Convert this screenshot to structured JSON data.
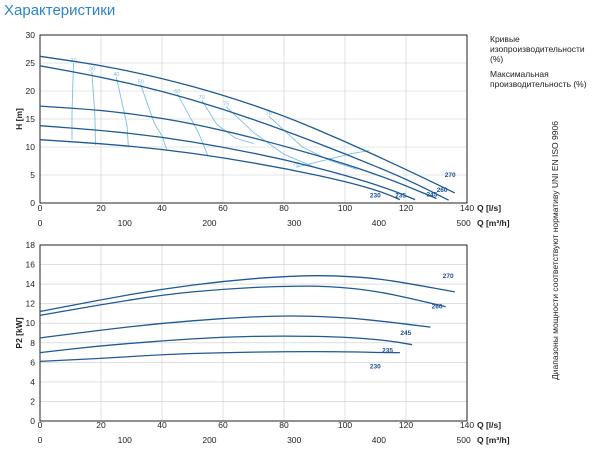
{
  "page": {
    "title": "Характеристики",
    "legend": {
      "curves_label": "Кривые изопроизводительности (%)",
      "max_label": "Максимальная производительность (%)"
    },
    "norm_text": "Диапазоны мощности соответствуют нормативу UNI EN ISO 9906"
  },
  "colors": {
    "curve": "#1d5a96",
    "iso": "#7cc0e4",
    "grid": "#cccccc",
    "frame": "#222222",
    "title": "#2c86c6"
  },
  "chart_data": [
    {
      "type": "line",
      "title": "",
      "ylabel": "H [m]",
      "xlabel": "Q [l/s]",
      "x2label": "Q [m³/h]",
      "xlim": [
        0,
        140
      ],
      "ylim": [
        0,
        30
      ],
      "xticks": [
        0,
        20,
        40,
        60,
        80,
        100,
        120,
        140
      ],
      "yticks": [
        0,
        5,
        10,
        15,
        20,
        25,
        30
      ],
      "x2ticks": [
        0,
        100,
        200,
        300,
        400,
        500
      ],
      "series": [
        {
          "name": "270",
          "points": [
            [
              0,
              26.2
            ],
            [
              20,
              24.6
            ],
            [
              40,
              22.3
            ],
            [
              60,
              19.3
            ],
            [
              80,
              15.6
            ],
            [
              100,
              11.0
            ],
            [
              120,
              6.0
            ],
            [
              136,
              1.8
            ]
          ]
        },
        {
          "name": "260",
          "points": [
            [
              0,
              24.5
            ],
            [
              20,
              22.5
            ],
            [
              40,
              20.0
            ],
            [
              60,
              16.8
            ],
            [
              80,
              13.0
            ],
            [
              100,
              8.8
            ],
            [
              120,
              4.3
            ],
            [
              134,
              0.5
            ]
          ]
        },
        {
          "name": "245",
          "points": [
            [
              0,
              17.3
            ],
            [
              20,
              16.6
            ],
            [
              40,
              15.2
            ],
            [
              60,
              13.0
            ],
            [
              80,
              10.2
            ],
            [
              100,
              7.0
            ],
            [
              116,
              4.0
            ],
            [
              130,
              0.8
            ]
          ]
        },
        {
          "name": "235",
          "points": [
            [
              0,
              13.8
            ],
            [
              20,
              13.0
            ],
            [
              40,
              11.8
            ],
            [
              60,
              10.0
            ],
            [
              80,
              7.8
            ],
            [
              100,
              5.0
            ],
            [
              115,
              2.4
            ],
            [
              123,
              0.6
            ]
          ]
        },
        {
          "name": "230",
          "points": [
            [
              0,
              11.3
            ],
            [
              20,
              10.6
            ],
            [
              40,
              9.6
            ],
            [
              60,
              8.1
            ],
            [
              80,
              6.2
            ],
            [
              100,
              3.9
            ],
            [
              112,
              2.0
            ],
            [
              118,
              0.6
            ]
          ]
        }
      ],
      "isolines": [
        {
          "label": "20",
          "points": [
            [
              11,
              25.0
            ],
            [
              10.5,
              16.0
            ],
            [
              10.5,
              11.3
            ]
          ]
        },
        {
          "label": "30",
          "points": [
            [
              17,
              23.5
            ],
            [
              18,
              15.6
            ],
            [
              18.2,
              10.3
            ]
          ]
        },
        {
          "label": "40",
          "points": [
            [
              25,
              22.5
            ],
            [
              28.5,
              14.0
            ],
            [
              29,
              10.0
            ]
          ]
        },
        {
          "label": "50",
          "points": [
            [
              33,
              21.2
            ],
            [
              37.5,
              14.2
            ],
            [
              40,
              12.0
            ],
            [
              41.5,
              9.6
            ]
          ]
        },
        {
          "label": "60",
          "points": [
            [
              45,
              19.5
            ],
            [
              52,
              12.5
            ],
            [
              55,
              8.5
            ]
          ]
        },
        {
          "label": "70",
          "points": [
            [
              53,
              18.4
            ],
            [
              58,
              14.0
            ],
            [
              64,
              11.6
            ],
            [
              70,
              10.6
            ]
          ]
        },
        {
          "label": "75",
          "points": [
            [
              61,
              17.2
            ],
            [
              70,
              12.6
            ],
            [
              80,
              8.7
            ],
            [
              90,
              6.4
            ]
          ]
        },
        {
          "label": "78",
          "points": [
            [
              75,
              15.5
            ],
            [
              80,
              13.0
            ],
            [
              86,
              10.0
            ],
            [
              95,
              7.6
            ],
            [
              104,
              6.0
            ]
          ]
        },
        {
          "label": "78",
          "points": [
            [
              84,
              6.4
            ],
            [
              96,
              8.0
            ],
            [
              102,
              8.8
            ],
            [
              108,
              9.4
            ]
          ]
        }
      ],
      "end_labels": [
        "270",
        "260",
        "245",
        "235",
        "230"
      ]
    },
    {
      "type": "line",
      "title": "",
      "ylabel": "P2 [kW]",
      "xlabel": "Q [l/s]",
      "x2label": "Q [m³/h]",
      "xlim": [
        0,
        140
      ],
      "ylim": [
        0,
        18
      ],
      "xticks": [
        0,
        20,
        40,
        60,
        80,
        100,
        120,
        140
      ],
      "yticks": [
        0,
        2,
        4,
        6,
        8,
        10,
        12,
        14,
        16,
        18
      ],
      "x2ticks": [
        0,
        100,
        200,
        300,
        400,
        500
      ],
      "series": [
        {
          "name": "270",
          "points": [
            [
              0,
              11.2
            ],
            [
              20,
              12.4
            ],
            [
              40,
              13.5
            ],
            [
              60,
              14.3
            ],
            [
              80,
              14.8
            ],
            [
              95,
              14.9
            ],
            [
              110,
              14.6
            ],
            [
              122,
              14.0
            ],
            [
              136,
              13.2
            ]
          ]
        },
        {
          "name": "260",
          "points": [
            [
              0,
              10.8
            ],
            [
              20,
              11.9
            ],
            [
              40,
              12.9
            ],
            [
              60,
              13.5
            ],
            [
              80,
              13.8
            ],
            [
              95,
              13.8
            ],
            [
              110,
              13.3
            ],
            [
              122,
              12.5
            ],
            [
              133,
              11.7
            ]
          ]
        },
        {
          "name": "245",
          "points": [
            [
              0,
              8.5
            ],
            [
              20,
              9.3
            ],
            [
              40,
              10.0
            ],
            [
              60,
              10.5
            ],
            [
              80,
              10.8
            ],
            [
              100,
              10.6
            ],
            [
              115,
              10.1
            ],
            [
              128,
              9.6
            ]
          ]
        },
        {
          "name": "235",
          "points": [
            [
              0,
              7.0
            ],
            [
              20,
              7.7
            ],
            [
              40,
              8.2
            ],
            [
              60,
              8.6
            ],
            [
              80,
              8.7
            ],
            [
              100,
              8.6
            ],
            [
              115,
              8.2
            ],
            [
              122,
              7.8
            ]
          ]
        },
        {
          "name": "230",
          "points": [
            [
              0,
              6.1
            ],
            [
              20,
              6.4
            ],
            [
              40,
              6.8
            ],
            [
              60,
              7.0
            ],
            [
              80,
              7.1
            ],
            [
              100,
              7.1
            ],
            [
              112,
              7.0
            ],
            [
              118,
              7.0
            ]
          ]
        }
      ],
      "end_labels": [
        "270",
        "260",
        "245",
        "235",
        "230"
      ]
    }
  ]
}
